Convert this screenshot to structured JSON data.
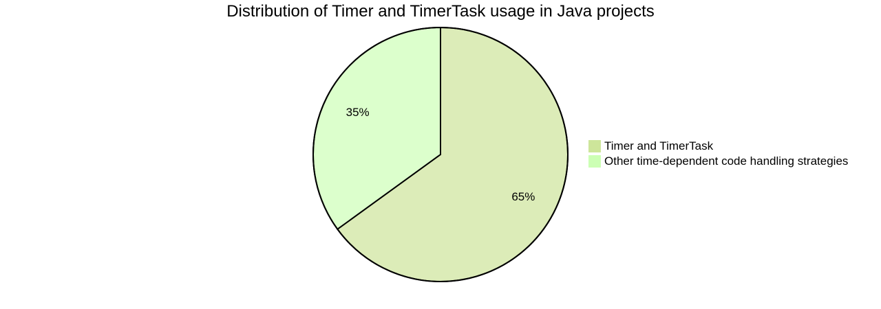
{
  "chart_data": {
    "type": "pie",
    "title": "Distribution of Timer and TimerTask usage in Java projects",
    "slices": [
      {
        "label": "Timer and TimerTask",
        "value": 65,
        "display": "65%",
        "color": "#dcecb8",
        "legend_color": "#cde59a"
      },
      {
        "label": "Other time-dependent code handling strategies",
        "value": 35,
        "display": "35%",
        "color": "#dcffcc",
        "legend_color": "#ccffb4"
      }
    ],
    "legend_position": "right"
  }
}
